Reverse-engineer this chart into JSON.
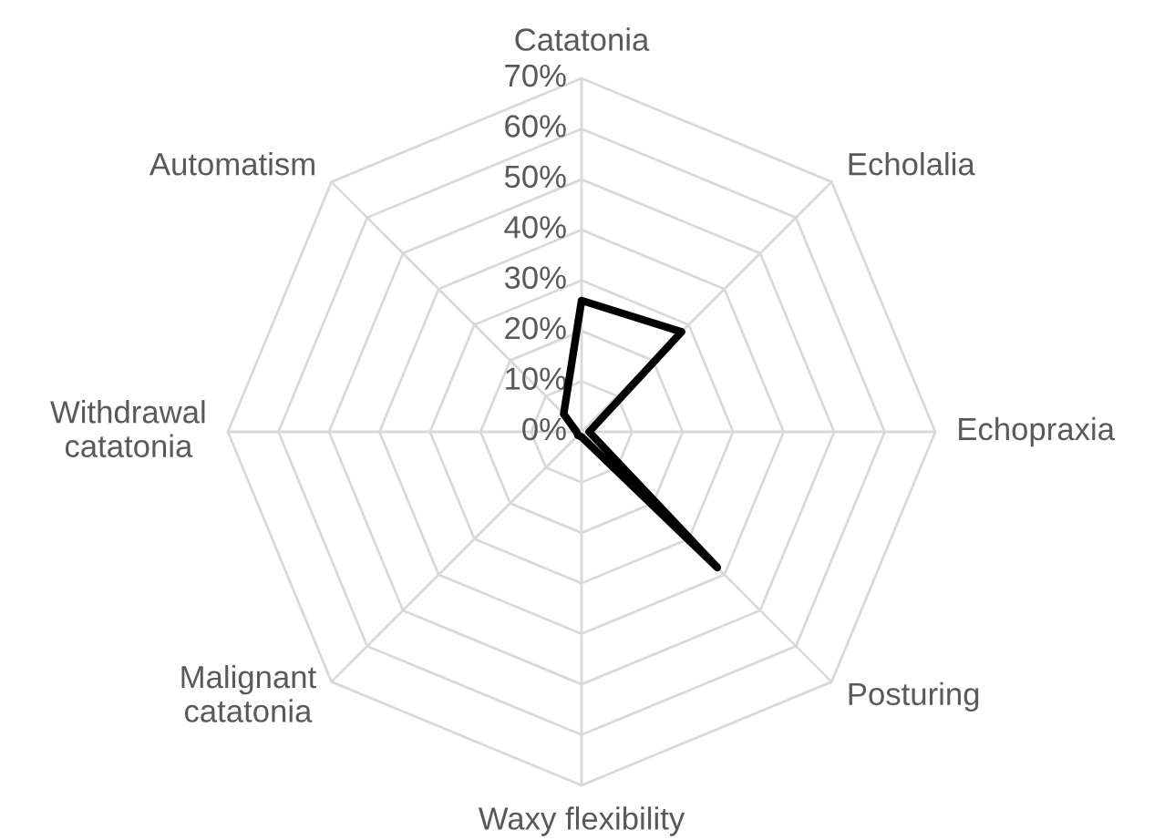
{
  "chart_data": {
    "type": "radar",
    "categories": [
      "Catatonia",
      "Echolalia",
      "Echopraxia",
      "Posturing",
      "Waxy flexibility",
      "Malignant catatonia",
      "Withdrawal catatonia",
      "Automatism"
    ],
    "series": [
      {
        "color": "#000000",
        "values": [
          26,
          28,
          1.5,
          38,
          1,
          1,
          1,
          5
        ]
      }
    ],
    "ylim": [
      0,
      70
    ],
    "yticks": [
      {
        "value": 0,
        "label": "0%"
      },
      {
        "value": 10,
        "label": "10%"
      },
      {
        "value": 20,
        "label": "20%"
      },
      {
        "value": 30,
        "label": "30%"
      },
      {
        "value": 40,
        "label": "40%"
      },
      {
        "value": 50,
        "label": "50%"
      },
      {
        "value": 60,
        "label": "60%"
      },
      {
        "value": 70,
        "label": "70%"
      }
    ],
    "grid": true
  }
}
